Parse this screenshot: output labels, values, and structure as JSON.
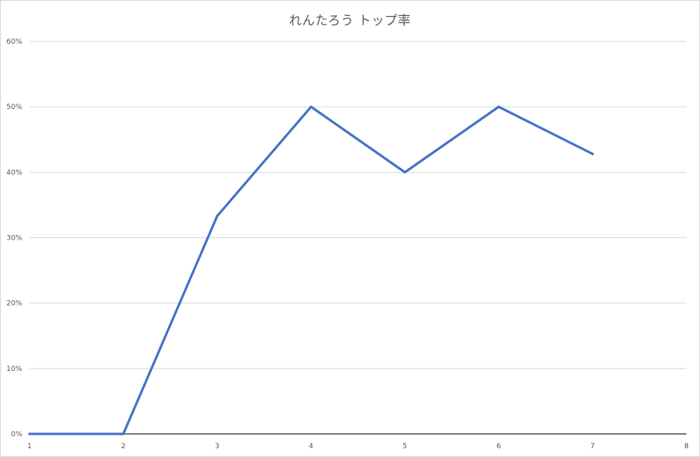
{
  "chart_data": {
    "type": "line",
    "title": "れんたろう トップ率",
    "xlabel": "",
    "ylabel": "",
    "x": [
      1,
      2,
      3,
      4,
      5,
      6,
      7
    ],
    "series": [
      {
        "values": [
          0,
          0,
          0.333,
          0.5,
          0.4,
          0.5,
          0.428
        ]
      }
    ],
    "xlim": [
      1,
      8
    ],
    "ylim": [
      0,
      0.6
    ],
    "x_ticks": [
      "1",
      "2",
      "3",
      "4",
      "5",
      "6",
      "7",
      "8"
    ],
    "y_ticks": [
      "0%",
      "10%",
      "20%",
      "30%",
      "40%",
      "50%",
      "60%"
    ],
    "y_tick_values": [
      0,
      0.1,
      0.2,
      0.3,
      0.4,
      0.5,
      0.6
    ],
    "grid": "horizontal",
    "legend": "none",
    "colors": {
      "line": "#4472c4",
      "grid": "#d9d9d9",
      "axis": "#000000",
      "text": "#595959"
    }
  }
}
